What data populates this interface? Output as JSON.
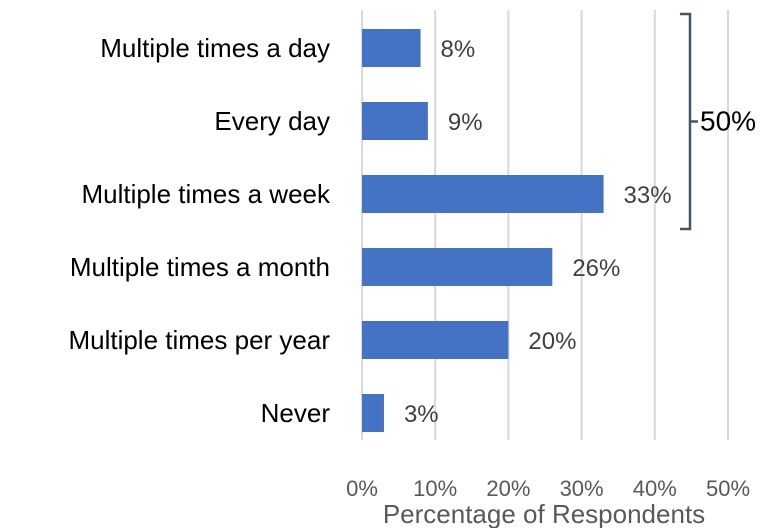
{
  "chart_data": {
    "type": "bar",
    "orientation": "horizontal",
    "categories": [
      "Multiple times a day",
      "Every day",
      "Multiple times a week",
      "Multiple times a month",
      "Multiple times per year",
      "Never"
    ],
    "values": [
      8,
      9,
      33,
      26,
      20,
      3
    ],
    "data_labels": [
      "8%",
      "9%",
      "33%",
      "26%",
      "20%",
      "3%"
    ],
    "xlabel": "Percentage of Respondents",
    "ylabel": "",
    "xlim": [
      0,
      50
    ],
    "ticks": [
      "0%",
      "10%",
      "20%",
      "30%",
      "40%",
      "50%"
    ],
    "grid": "vertical",
    "bar_color": "#4472C4",
    "annotation": {
      "label": "50%",
      "spans": [
        "Multiple times a day",
        "Every day",
        "Multiple times a week"
      ]
    }
  }
}
